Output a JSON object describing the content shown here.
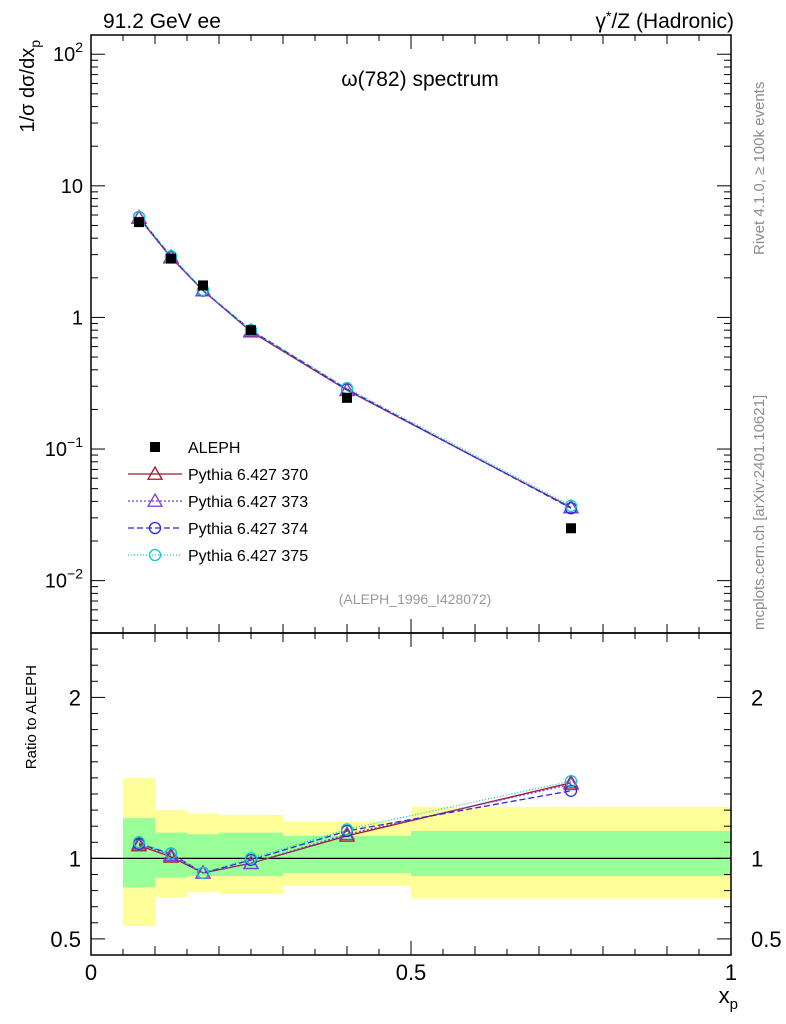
{
  "header": {
    "left": "91.2 GeV ee",
    "right_sup": "*",
    "right_pre": "γ",
    "right_post": "/Z (Hadronic)"
  },
  "side": {
    "top": "Rivet 4.1.0, ≥ 100k events",
    "bottom": "mcplots.cern.ch [arXiv:2401.10621]"
  },
  "chart_data": [
    {
      "type": "scatter",
      "panel": "main",
      "title": "ω(782) spectrum",
      "ylabel_prefix": "1/σ  dσ/dx",
      "ylabel_sub": "p",
      "yscale": "log",
      "ylim": [
        0.004,
        140
      ],
      "xlim": [
        0,
        1
      ],
      "analysis_tag": "(ALEPH_1996_I428072)",
      "ytick_labels": [
        {
          "base": "10",
          "exp": "2",
          "value": 100
        },
        {
          "base": "10",
          "exp": "",
          "value": 10
        },
        {
          "base": "1",
          "exp": "",
          "value": 1
        },
        {
          "base": "10",
          "exp": "−1",
          "value": 0.1
        },
        {
          "base": "10",
          "exp": "−2",
          "value": 0.01
        }
      ],
      "data": {
        "name": "ALEPH",
        "color": "#000000",
        "x": [
          0.075,
          0.125,
          0.175,
          0.25,
          0.4,
          0.75
        ],
        "y": [
          5.3,
          2.8,
          1.75,
          0.8,
          0.245,
          0.025
        ]
      },
      "series": [
        {
          "name": "Pythia 6.427 370",
          "color": "#a0172f",
          "marker": "triangle",
          "dash": "",
          "y": [
            5.7,
            2.85,
            1.6,
            0.78,
            0.28,
            0.036
          ]
        },
        {
          "name": "Pythia 6.427 373",
          "color": "#7b3fd6",
          "marker": "triangle",
          "dash": "2,2",
          "y": [
            5.75,
            2.88,
            1.6,
            0.79,
            0.28,
            0.036
          ]
        },
        {
          "name": "Pythia 6.427 374",
          "color": "#2a2ad6",
          "marker": "circle",
          "dash": "6,3",
          "y": [
            5.8,
            2.9,
            1.6,
            0.8,
            0.285,
            0.0355
          ]
        },
        {
          "name": "Pythia 6.427 375",
          "color": "#11c8c8",
          "marker": "circle",
          "dash": "1,2",
          "y": [
            5.8,
            2.92,
            1.62,
            0.8,
            0.29,
            0.037
          ]
        }
      ]
    },
    {
      "type": "line",
      "panel": "ratio",
      "ylabel": "Ratio to ALEPH",
      "xlabel_main": "x",
      "xlabel_sub": "p",
      "ylim": [
        0.4,
        2.4
      ],
      "xlim": [
        0,
        1
      ],
      "xtick_labels": [
        {
          "label": "0",
          "value": 0
        },
        {
          "label": "0.5",
          "value": 0.5
        },
        {
          "label": "1",
          "value": 1
        }
      ],
      "ytick_labels": [
        {
          "label": "2",
          "value": 2
        },
        {
          "label": "1",
          "value": 1
        },
        {
          "label": "0.5",
          "value": 0.5
        }
      ],
      "bands": [
        {
          "x0": 0.05,
          "x1": 0.1,
          "inner_lo": 0.82,
          "inner_hi": 1.25,
          "outer_lo": 0.58,
          "outer_hi": 1.5
        },
        {
          "x0": 0.1,
          "x1": 0.15,
          "inner_lo": 0.88,
          "inner_hi": 1.16,
          "outer_lo": 0.76,
          "outer_hi": 1.3
        },
        {
          "x0": 0.15,
          "x1": 0.2,
          "inner_lo": 0.89,
          "inner_hi": 1.15,
          "outer_lo": 0.79,
          "outer_hi": 1.28
        },
        {
          "x0": 0.2,
          "x1": 0.3,
          "inner_lo": 0.89,
          "inner_hi": 1.16,
          "outer_lo": 0.78,
          "outer_hi": 1.27
        },
        {
          "x0": 0.3,
          "x1": 0.5,
          "inner_lo": 0.91,
          "inner_hi": 1.14,
          "outer_lo": 0.83,
          "outer_hi": 1.23
        },
        {
          "x0": 0.5,
          "x1": 1.0,
          "inner_lo": 0.89,
          "inner_hi": 1.17,
          "outer_lo": 0.75,
          "outer_hi": 1.32
        }
      ],
      "ratio_series": [
        {
          "name": "Pythia 6.427 370",
          "color": "#a0172f",
          "marker": "triangle",
          "dash": "",
          "y": [
            1.08,
            1.01,
            0.91,
            0.97,
            1.14,
            1.47
          ]
        },
        {
          "name": "Pythia 6.427 373",
          "color": "#7b3fd6",
          "marker": "triangle",
          "dash": "2,2",
          "y": [
            1.09,
            1.02,
            0.91,
            0.97,
            1.15,
            1.46
          ]
        },
        {
          "name": "Pythia 6.427 374",
          "color": "#2a2ad6",
          "marker": "circle",
          "dash": "6,3",
          "y": [
            1.09,
            1.03,
            0.91,
            0.99,
            1.17,
            1.42
          ]
        },
        {
          "name": "Pythia 6.427 375",
          "color": "#11c8c8",
          "marker": "circle",
          "dash": "1,2",
          "y": [
            1.1,
            1.03,
            0.91,
            1.0,
            1.18,
            1.48
          ]
        }
      ]
    }
  ]
}
